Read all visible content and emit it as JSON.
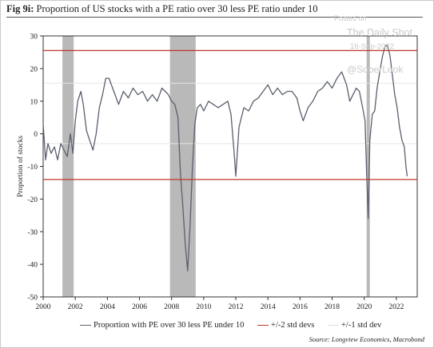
{
  "title_prefix": "Fig 9i:",
  "title_text": "Proportion of US stocks with a PE ratio over 30 less PE ratio under 10",
  "watermark": {
    "posted": "Posted on",
    "site": "The Daily Shot",
    "date": "16-Sep-2022",
    "handle": "@SoberLook"
  },
  "source": "Source: Longview Economics, Macrobond",
  "colors": {
    "series": "#5b5f6e",
    "two_std": "#c0392b",
    "one_std": "#e6e6e6",
    "recession": "#b9b9b9"
  },
  "chart_data": {
    "type": "line",
    "title": "Fig 9i: Proportion of US stocks with a PE ratio over 30 less PE ratio under 10",
    "ylabel": "Proportion of stocks",
    "xlabel": "",
    "xlim": [
      2000,
      2023.3
    ],
    "ylim": [
      -50,
      30
    ],
    "x_ticks": [
      "2000",
      "2002",
      "2004",
      "2006",
      "2008",
      "2010",
      "2012",
      "2014",
      "2016",
      "2018",
      "2020",
      "2022"
    ],
    "y_ticks": [
      "30",
      "20",
      "10",
      "0",
      "-10",
      "-20",
      "-30",
      "-40",
      "-50"
    ],
    "recession_shading": [
      [
        2001.2,
        2001.9
      ],
      [
        2007.9,
        2009.5
      ],
      [
        2020.15,
        2020.35
      ]
    ],
    "reference_lines": {
      "two_std": [
        25.5,
        -14
      ],
      "one_std": [
        15.5,
        -3
      ]
    },
    "legend": [
      "Proportion with PE over 30 less PE under 10",
      "+/-2 std devs",
      "+/-1 std dev"
    ],
    "series": [
      {
        "name": "Proportion with PE over 30 less PE under 10",
        "x": [
          2000.0,
          2000.15,
          2000.3,
          2000.5,
          2000.7,
          2000.9,
          2001.1,
          2001.3,
          2001.5,
          2001.7,
          2001.85,
          2002.0,
          2002.15,
          2002.35,
          2002.5,
          2002.7,
          2002.9,
          2003.1,
          2003.3,
          2003.5,
          2003.7,
          2003.9,
          2004.1,
          2004.4,
          2004.7,
          2005.0,
          2005.3,
          2005.6,
          2005.9,
          2006.2,
          2006.5,
          2006.8,
          2007.1,
          2007.4,
          2007.6,
          2007.8,
          2008.0,
          2008.2,
          2008.4,
          2008.55,
          2008.7,
          2008.85,
          2009.0,
          2009.15,
          2009.3,
          2009.45,
          2009.6,
          2009.8,
          2010.0,
          2010.3,
          2010.6,
          2010.9,
          2011.2,
          2011.5,
          2011.7,
          2011.9,
          2012.0,
          2012.2,
          2012.5,
          2012.8,
          2013.1,
          2013.4,
          2013.7,
          2014.0,
          2014.3,
          2014.6,
          2014.9,
          2015.2,
          2015.5,
          2015.8,
          2016.0,
          2016.2,
          2016.5,
          2016.8,
          2017.1,
          2017.4,
          2017.7,
          2018.0,
          2018.3,
          2018.6,
          2018.9,
          2019.1,
          2019.3,
          2019.5,
          2019.7,
          2019.9,
          2020.05,
          2020.15,
          2020.25,
          2020.35,
          2020.5,
          2020.65,
          2020.8,
          2021.0,
          2021.15,
          2021.3,
          2021.45,
          2021.6,
          2021.75,
          2021.9,
          2022.05,
          2022.2,
          2022.35,
          2022.5,
          2022.6,
          2022.68
        ],
        "y": [
          3,
          -8,
          -3,
          -6,
          -4,
          -8,
          -3,
          -5,
          -7,
          0,
          -6,
          4,
          10,
          13,
          9,
          1,
          -2,
          -5,
          0,
          8,
          12,
          17,
          17,
          13,
          9,
          13,
          11,
          14,
          12,
          13,
          10,
          12,
          10,
          14,
          13,
          12,
          10,
          9,
          5,
          -12,
          -22,
          -34,
          -42,
          -28,
          -10,
          3,
          8,
          9,
          7,
          10,
          9,
          8,
          9,
          10,
          6,
          -6,
          -13,
          2,
          8,
          7,
          10,
          11,
          13,
          15,
          12,
          14,
          12,
          13,
          13,
          11,
          7,
          4,
          8,
          10,
          13,
          14,
          16,
          14,
          17,
          19,
          15,
          10,
          12,
          14,
          13,
          8,
          4,
          -12,
          -26,
          -2,
          6,
          7,
          14,
          20,
          24,
          27,
          27,
          24,
          18,
          12,
          8,
          2,
          -2,
          -4,
          -10,
          -13
        ]
      }
    ]
  }
}
